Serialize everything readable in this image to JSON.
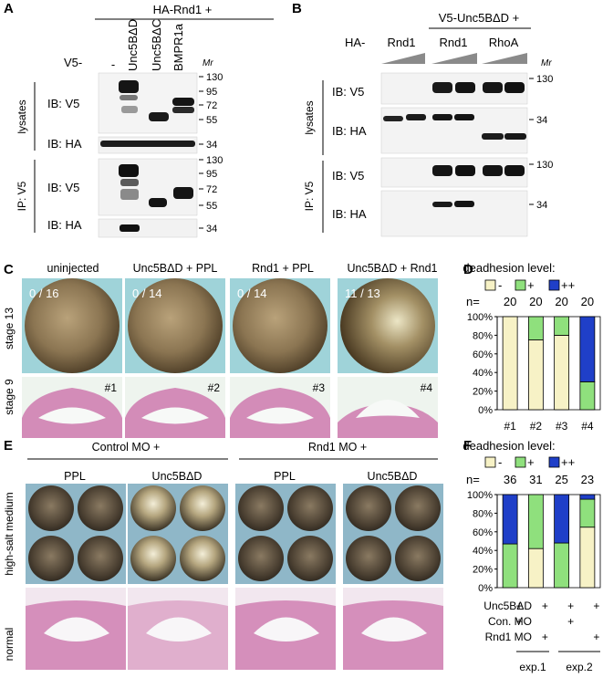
{
  "panels": {
    "A": "A",
    "B": "B",
    "C": "C",
    "D": "D",
    "E": "E",
    "F": "F"
  },
  "panelA": {
    "header": "HA-Rnd1 +",
    "row_label": "V5-",
    "lanes": [
      "-",
      "Unc5BΔD",
      "Unc5BΔC",
      "BMPR1a"
    ],
    "mr": "Mr",
    "side_lysates": "lysates",
    "side_ip": "IP: V5",
    "blots": [
      "IB: V5",
      "IB: HA",
      "IB: V5",
      "IB: HA"
    ],
    "markers_lys_v5": [
      "130",
      "95",
      "72",
      "55"
    ],
    "marker_lys_ha": "34",
    "markers_ip_v5": [
      "130",
      "95",
      "72",
      "55"
    ],
    "marker_ip_ha": "34"
  },
  "panelB": {
    "header": "V5-Unc5BΔD +",
    "row_label": "HA-",
    "groups": [
      "Rnd1",
      "Rnd1",
      "RhoA"
    ],
    "mr": "Mr",
    "side_lysates": "lysates",
    "side_ip": "IP: V5",
    "blots": [
      "IB: V5",
      "IB: HA",
      "IB: V5",
      "IB: HA"
    ],
    "markers": [
      "130",
      "34",
      "130",
      "34"
    ]
  },
  "panelC": {
    "conditions": [
      "uninjected",
      "Unc5BΔD + PPL",
      "Rnd1 + PPL",
      "Unc5BΔD + Rnd1"
    ],
    "counts": [
      "0 / 16",
      "0 / 14",
      "0 / 14",
      "11 / 13"
    ],
    "row_labels": [
      "stage 13",
      "stage 9"
    ],
    "section_ids": [
      "#1",
      "#2",
      "#3",
      "#4"
    ]
  },
  "panelE": {
    "groups": [
      "Control MO +",
      "Rnd1 MO +"
    ],
    "subconditions": [
      "PPL",
      "Unc5BΔD",
      "PPL",
      "Unc5BΔD"
    ],
    "row_labels": [
      "high-salt medium",
      "normal"
    ]
  },
  "legend": {
    "title": "deadhesion level:",
    "items": [
      "-",
      "+",
      "++"
    ],
    "n_label": "n="
  },
  "colors": {
    "minus": "#f7f2c6",
    "plus": "#8fe07d",
    "plusplus": "#1f3fc8",
    "blot_bg": "#f3f3f3",
    "embryo_bg": "#9fd3d9",
    "section_bg": "#eef4ee",
    "tissue": "#c96aa5"
  },
  "chart_data": [
    {
      "type": "bar",
      "stacked": true,
      "title": "deadhesion level:",
      "categories": [
        "#1",
        "#2",
        "#3",
        "#4"
      ],
      "n": [
        20,
        20,
        20,
        20
      ],
      "series": [
        {
          "name": "-",
          "values": [
            100,
            75,
            80,
            0
          ]
        },
        {
          "name": "+",
          "values": [
            0,
            25,
            20,
            30
          ]
        },
        {
          "name": "++",
          "values": [
            0,
            0,
            0,
            70
          ]
        }
      ],
      "ylim": [
        0,
        100
      ],
      "yticks": [
        "0%",
        "20%",
        "40%",
        "60%",
        "80%",
        "100%"
      ],
      "xlabel": "",
      "ylabel": ""
    },
    {
      "type": "bar",
      "stacked": true,
      "title": "deadhesion level:",
      "categories": [
        "1",
        "2",
        "3",
        "4"
      ],
      "n": [
        36,
        31,
        25,
        23
      ],
      "series": [
        {
          "name": "-",
          "values": [
            0,
            42,
            0,
            65
          ]
        },
        {
          "name": "+",
          "values": [
            47,
            58,
            48,
            30
          ]
        },
        {
          "name": "++",
          "values": [
            53,
            0,
            52,
            5
          ]
        }
      ],
      "ylim": [
        0,
        100
      ],
      "yticks": [
        "0%",
        "20%",
        "40%",
        "60%",
        "80%",
        "100%"
      ],
      "rows": [
        {
          "label": "Unc5BΔD",
          "marks": [
            "+",
            "+",
            "+",
            "+"
          ]
        },
        {
          "label": "Con. MO",
          "marks": [
            "+",
            "",
            "+",
            ""
          ]
        },
        {
          "label": "Rnd1 MO",
          "marks": [
            "",
            "+",
            "",
            "+"
          ]
        }
      ],
      "experiments": [
        "exp.1",
        "exp.2"
      ],
      "xlabel": "",
      "ylabel": ""
    }
  ]
}
